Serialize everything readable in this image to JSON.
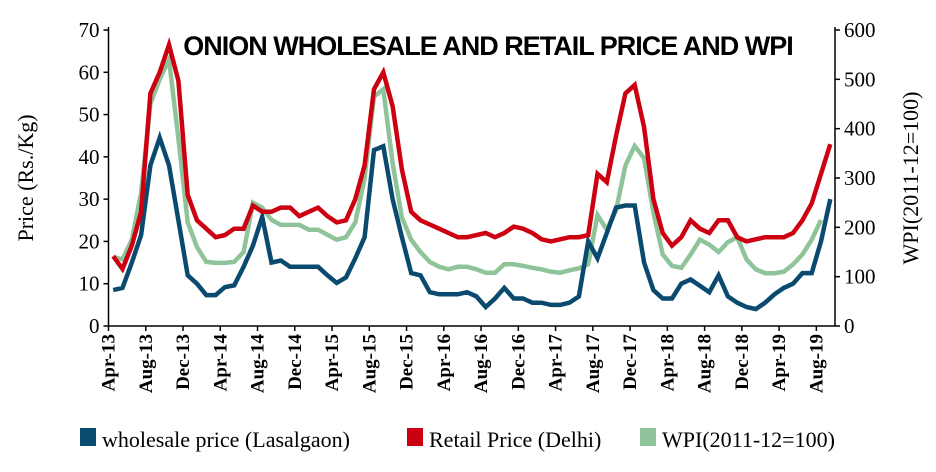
{
  "chart_data": {
    "type": "line",
    "title": "ONION WHOLESALE AND RETAIL PRICE AND WPI",
    "ylabel": "Price (Rs./Kg)",
    "y2label": "WPI(2011-12=100)",
    "ylim": [
      0,
      70
    ],
    "y2lim": [
      0,
      600
    ],
    "yticks": [
      "0",
      "10",
      "20",
      "30",
      "40",
      "50",
      "60",
      "70"
    ],
    "y2ticks": [
      "0",
      "100",
      "200",
      "300",
      "400",
      "500",
      "600"
    ],
    "xtick_labels": [
      "Apr-13",
      "Aug-13",
      "Dec-13",
      "Apr-14",
      "Aug-14",
      "Dec-14",
      "Apr-15",
      "Aug-15",
      "Dec-15",
      "Apr-16",
      "Aug-16",
      "Dec-16",
      "Apr-17",
      "Aug-17",
      "Dec-17",
      "Apr-18",
      "Aug-18",
      "Dec-18",
      "Apr-19",
      "Aug-19"
    ],
    "x_start": "Apr-13",
    "x_end": "Sep-19",
    "legend_position": "bottom",
    "series": [
      {
        "name": "wholesale price (Lasalgaon)",
        "axis": "left",
        "color": "#0b4a6f",
        "values": [
          8.5,
          9,
          15,
          21.5,
          38,
          44.5,
          38,
          25,
          12,
          10,
          7.3,
          7.3,
          9.2,
          9.6,
          14,
          19,
          25.8,
          15,
          15.5,
          14,
          14,
          14,
          14,
          12,
          10.2,
          11.5,
          16,
          21,
          41.6,
          42.5,
          30,
          21,
          12.5,
          12,
          8,
          7.5,
          7.5,
          7.5,
          8,
          7,
          4.5,
          6.5,
          9,
          6.5,
          6.5,
          5.5,
          5.5,
          5,
          5,
          5.5,
          7,
          20,
          16,
          22,
          28,
          28.5,
          28.5,
          15,
          8.5,
          6.5,
          6.5,
          10,
          11,
          9.5,
          8,
          12,
          7,
          5.5,
          4.5,
          4,
          5.5,
          7.5,
          9,
          10,
          12.5,
          12.5,
          20,
          30
        ]
      },
      {
        "name": "Retail Price (Delhi)",
        "axis": "left",
        "color": "#cc0011",
        "values": [
          16.5,
          13.5,
          19,
          27,
          55,
          60,
          66.5,
          58,
          31,
          25,
          23,
          21,
          21.5,
          23,
          23,
          28.5,
          27,
          27,
          28,
          28,
          26,
          27,
          28,
          26,
          24.5,
          25,
          30,
          38,
          56,
          60,
          52,
          37,
          27,
          25,
          24,
          23,
          22,
          21,
          21,
          21.5,
          22,
          21,
          22,
          23.5,
          23,
          22,
          20.5,
          20,
          20.5,
          21,
          21,
          21.5,
          36,
          34,
          45,
          55,
          57,
          47,
          30,
          22,
          19,
          21,
          25,
          23,
          22,
          25,
          25,
          21,
          20,
          20.5,
          21,
          21,
          21,
          22,
          25,
          29,
          36,
          43
        ]
      },
      {
        "name": "WPI(2011-12=100)",
        "axis": "right",
        "color": "#8fc49b",
        "values": [
          140,
          135,
          175,
          270,
          450,
          500,
          540,
          380,
          210,
          160,
          130,
          128,
          128,
          130,
          150,
          250,
          240,
          215,
          205,
          205,
          205,
          195,
          195,
          185,
          175,
          180,
          210,
          300,
          465,
          480,
          330,
          220,
          175,
          150,
          130,
          120,
          115,
          120,
          120,
          115,
          108,
          108,
          125,
          125,
          122,
          118,
          115,
          110,
          108,
          113,
          117,
          125,
          225,
          195,
          235,
          325,
          365,
          340,
          230,
          145,
          122,
          118,
          145,
          175,
          165,
          150,
          170,
          180,
          135,
          115,
          107,
          107,
          110,
          125,
          145,
          175,
          215,
          null
        ]
      }
    ]
  }
}
